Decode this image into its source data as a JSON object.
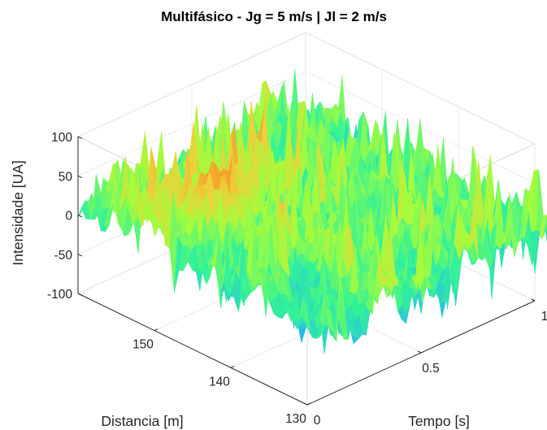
{
  "chart_data": {
    "type": "surface",
    "title": "Multifásico - Jg = 5 m/s | Jl = 2 m/s",
    "xlabel": "Tempo [s]",
    "ylabel": "Distancia [m]",
    "zlabel": "Intensidade [UA]",
    "xlim": [
      0,
      1
    ],
    "ylim": [
      130,
      160
    ],
    "zlim": [
      -100,
      100
    ],
    "x_ticks": [
      "0",
      "0.5",
      "1"
    ],
    "y_ticks": [
      "130",
      "140",
      "150"
    ],
    "z_ticks": [
      "100",
      "50",
      "0",
      "-50",
      "-100"
    ],
    "grid": true,
    "colormap": "turbo",
    "surface": {
      "x_range": [
        0,
        1
      ],
      "y_range": [
        127,
        160
      ],
      "z_range": [
        -50,
        110
      ],
      "mean": 10,
      "notes": "Noisy turbulent intensity field with a ridge of peaks near 110 along the back-left region"
    }
  }
}
